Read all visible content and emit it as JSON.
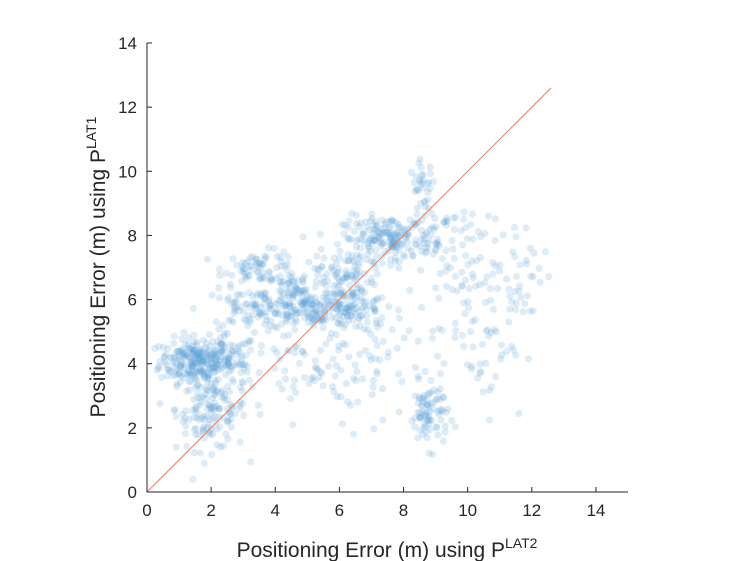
{
  "chart_data": {
    "type": "scatter",
    "xlabel": "Positioning Error (m) using P",
    "xlabel_sup": "LAT2",
    "ylabel": "Positioning Error (m) using P",
    "ylabel_sup": "LAT1",
    "xlim": [
      0,
      15
    ],
    "ylim": [
      0,
      14
    ],
    "x_ticks": [
      0,
      2,
      4,
      6,
      8,
      10,
      12,
      14
    ],
    "y_ticks": [
      0,
      2,
      4,
      6,
      8,
      10,
      12,
      14
    ],
    "grid": false,
    "point_color": "#5aa0d6",
    "reference_line": {
      "x": [
        0,
        12.6
      ],
      "y": [
        0,
        12.6
      ],
      "color": "#e0826a"
    },
    "clusters": [
      {
        "cx": 1.5,
        "cy": 4.1,
        "sx": 0.55,
        "sy": 0.35,
        "n": 220
      },
      {
        "cx": 2.0,
        "cy": 2.6,
        "sx": 0.55,
        "sy": 0.65,
        "n": 150
      },
      {
        "cx": 2.6,
        "cy": 4.1,
        "sx": 0.4,
        "sy": 0.4,
        "n": 60
      },
      {
        "cx": 3.6,
        "cy": 7.0,
        "sx": 0.6,
        "sy": 0.25,
        "n": 70
      },
      {
        "cx": 3.3,
        "cy": 5.7,
        "sx": 0.8,
        "sy": 0.3,
        "n": 90
      },
      {
        "cx": 4.7,
        "cy": 6.2,
        "sx": 0.5,
        "sy": 0.4,
        "n": 80
      },
      {
        "cx": 5.2,
        "cy": 5.6,
        "sx": 0.8,
        "sy": 0.25,
        "n": 110
      },
      {
        "cx": 6.1,
        "cy": 6.8,
        "sx": 0.4,
        "sy": 0.4,
        "n": 70
      },
      {
        "cx": 6.5,
        "cy": 5.8,
        "sx": 0.6,
        "sy": 0.4,
        "n": 70
      },
      {
        "cx": 7.5,
        "cy": 7.9,
        "sx": 0.7,
        "sy": 0.35,
        "n": 180
      },
      {
        "cx": 8.6,
        "cy": 9.5,
        "sx": 0.2,
        "sy": 0.4,
        "n": 35
      },
      {
        "cx": 9.2,
        "cy": 8.0,
        "sx": 0.6,
        "sy": 0.5,
        "n": 50
      },
      {
        "cx": 8.8,
        "cy": 2.4,
        "sx": 0.3,
        "sy": 0.5,
        "n": 80
      },
      {
        "cx": 5.0,
        "cy": 3.8,
        "sx": 1.3,
        "sy": 0.8,
        "n": 70
      },
      {
        "cx": 7.0,
        "cy": 4.2,
        "sx": 1.0,
        "sy": 1.0,
        "n": 60
      },
      {
        "cx": 11.6,
        "cy": 7.0,
        "sx": 0.6,
        "sy": 0.9,
        "n": 45
      },
      {
        "cx": 10.6,
        "cy": 4.8,
        "sx": 0.6,
        "sy": 1.1,
        "n": 45
      },
      {
        "cx": 9.6,
        "cy": 6.3,
        "sx": 0.6,
        "sy": 0.7,
        "n": 30
      }
    ]
  }
}
